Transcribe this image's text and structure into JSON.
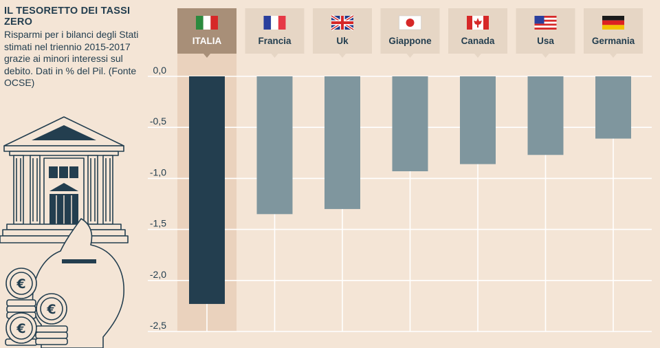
{
  "intro": {
    "title": "IL TESORETTO DEI TASSI ZERO",
    "description": "Risparmi per i bilanci degli Stati stimati nel triennio 2015-2017 grazie ai minori interessi sul debito. Dati in % del Pil. (Fonte OCSE)"
  },
  "illustration": {
    "icons": [
      "bank-building-icon",
      "piggy-bank-icon",
      "euro-coins-icon"
    ],
    "coin_symbol": "€"
  },
  "chart_data": {
    "type": "bar",
    "title": "IL TESORETTO DEI TASSI ZERO",
    "categories": [
      "ITALIA",
      "Francia",
      "Uk",
      "Giappone",
      "Canada",
      "Usa",
      "Germania"
    ],
    "values": [
      -2.23,
      -1.35,
      -1.3,
      -0.93,
      -0.86,
      -0.77,
      -0.61
    ],
    "highlight": "ITALIA",
    "yticks": [
      0.0,
      -0.5,
      -1.0,
      -1.5,
      -2.0,
      -2.5
    ],
    "ytick_labels": [
      "0,0",
      "-0,5",
      "-1,0",
      "-1,5",
      "-2,0",
      "-2,5"
    ],
    "ylim": [
      -2.5,
      0
    ],
    "xlabel": "",
    "ylabel": "",
    "grid": true,
    "flags": [
      "flag-italy-icon",
      "flag-france-icon",
      "flag-uk-icon",
      "flag-japan-icon",
      "flag-canada-icon",
      "flag-usa-icon",
      "flag-germany-icon"
    ],
    "colors": {
      "highlight_bar": "#233e4f",
      "bar": "#7f969e",
      "highlight_band": "#ead2bd",
      "highlight_tab": "#a88f78",
      "tab": "#e6d6c5",
      "grid": "#ffffff",
      "text": "#233e4f"
    }
  }
}
